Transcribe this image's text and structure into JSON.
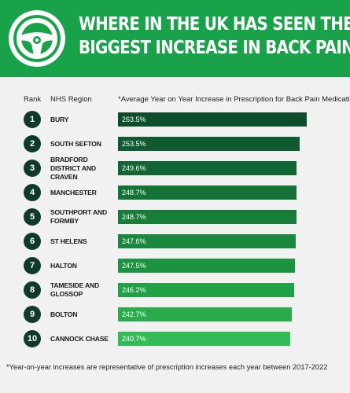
{
  "header": {
    "title_line1": "WHERE IN THE UK HAS SEEN THE",
    "title_line2": "BIGGEST INCREASE IN BACK PAIN?",
    "icon": "steering-wheel-icon",
    "background_color": "#1aa24b"
  },
  "columns": {
    "rank": "Rank",
    "region": "NHS Region",
    "value": "*Average Year on Year Increase in Prescription for Back Pain Medication"
  },
  "footnote": "*Year-on-year increases are representative of prescription increases each year between 2017-2022",
  "chart_data": {
    "type": "bar",
    "orientation": "horizontal",
    "ranks": [
      1,
      2,
      3,
      4,
      5,
      6,
      7,
      8,
      9,
      10
    ],
    "categories": [
      "BURY",
      "SOUTH SEFTON",
      "BRADFORD DISTRICT AND CRAVEN",
      "MANCHESTER",
      "SOUTHPORT AND FORMBY",
      "ST HELENS",
      "HALTON",
      "TAMESIDE AND GLOSSOP",
      "BOLTON",
      "CANNOCK CHASE"
    ],
    "values": [
      263.5,
      253.5,
      249.6,
      248.7,
      248.7,
      247.6,
      247.5,
      246.2,
      242.7,
      240.7
    ],
    "value_labels": [
      "263.5%",
      "253.5%",
      "249.6%",
      "248.7%",
      "248.7%",
      "247.6%",
      "247.5%",
      "246.2%",
      "242.7%",
      "240.7%"
    ],
    "bar_colors": [
      "#0c4d2b",
      "#0f5a31",
      "#126633",
      "#157236",
      "#187d3a",
      "#1a883d",
      "#1c9340",
      "#22a046",
      "#28ac4c",
      "#34ba56"
    ],
    "rank_circle_color": "#0f3a2b"
  }
}
